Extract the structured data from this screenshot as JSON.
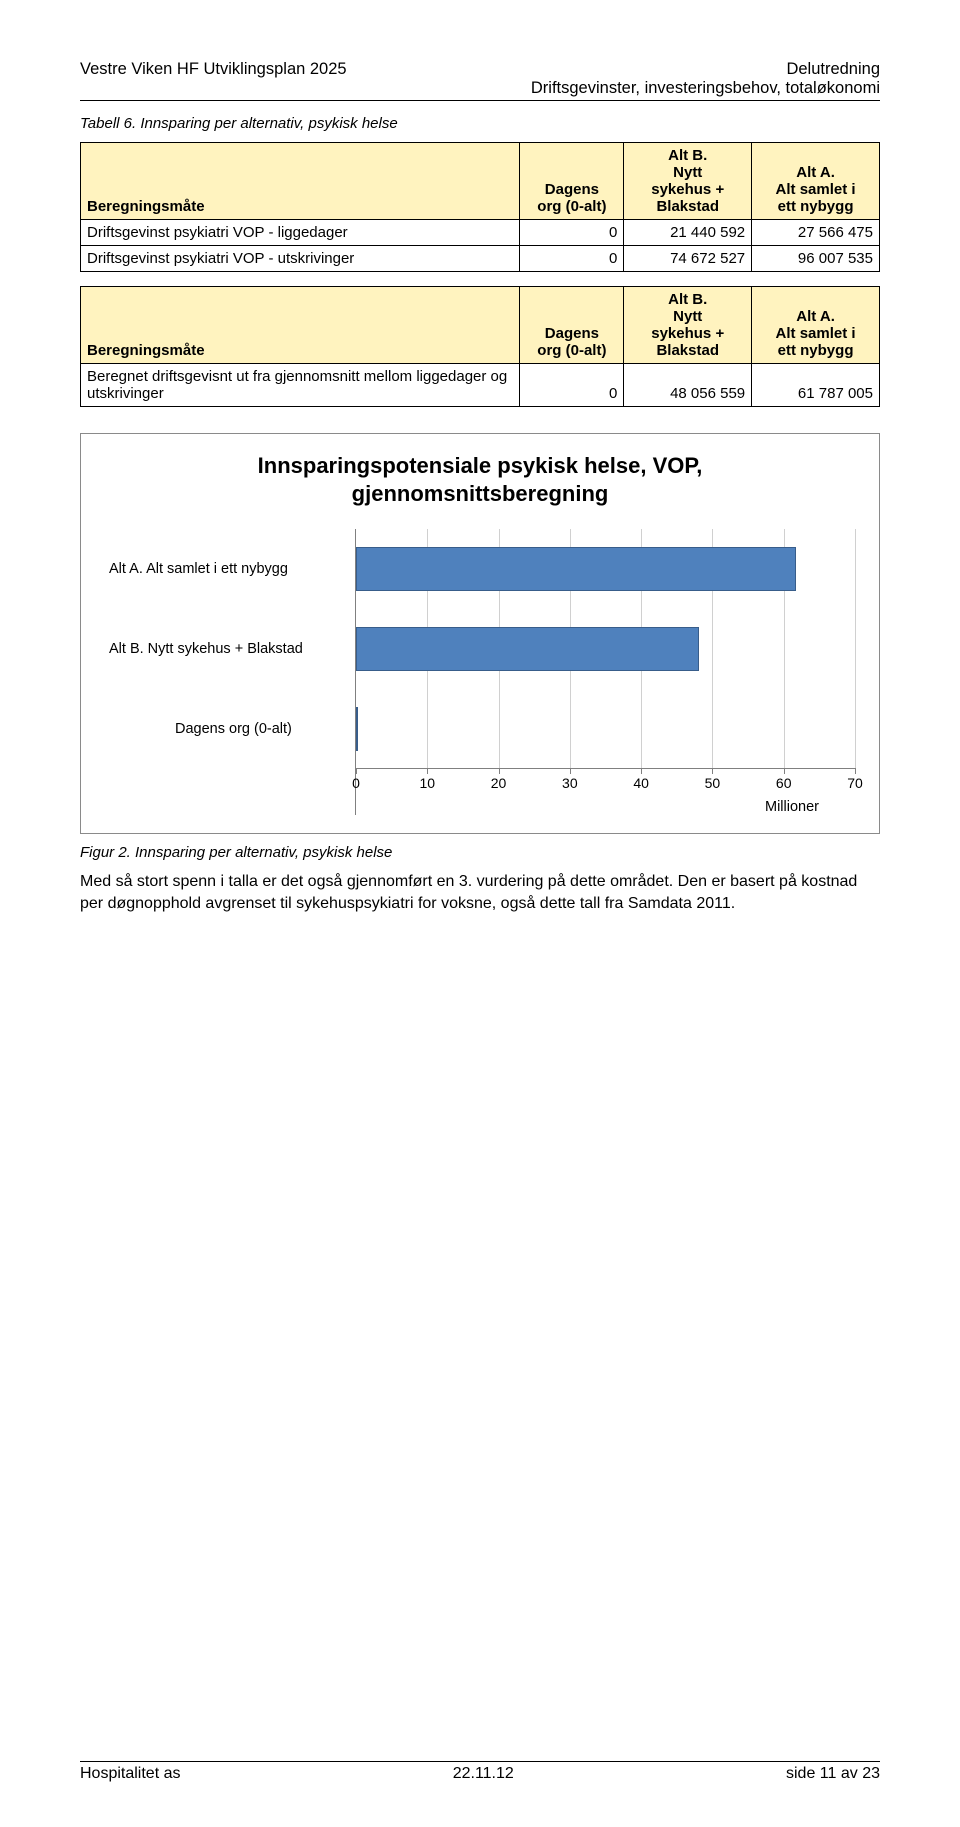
{
  "header": {
    "left": "Vestre Viken HF Utviklingsplan 2025",
    "right1": "Delutredning",
    "right2": "Driftsgevinster, investeringsbehov, totaløkonomi"
  },
  "table_caption": "Tabell 6. Innsparing per alternativ, psykisk helse",
  "table1": {
    "col0": "Beregningsmåte",
    "col1_l1": "Dagens",
    "col1_l2": "org (0-alt)",
    "col2_l1": "Alt B.",
    "col2_l2": "Nytt",
    "col2_l3": "sykehus +",
    "col2_l4": "Blakstad",
    "col3_l1": "Alt A.",
    "col3_l2": "Alt samlet i",
    "col3_l3": "ett nybygg",
    "r1_label": "Driftsgevinst psykiatri VOP - liggedager",
    "r1_c1": "0",
    "r1_c2": "21 440 592",
    "r1_c3": "27 566 475",
    "r2_label": "Driftsgevinst psykiatri VOP - utskrivinger",
    "r2_c1": "0",
    "r2_c2": "74 672 527",
    "r2_c3": "96 007 535"
  },
  "table2": {
    "col0": "Beregningsmåte",
    "col1_l1": "Dagens",
    "col1_l2": "org (0-alt)",
    "col2_l1": "Alt B.",
    "col2_l2": "Nytt",
    "col2_l3": "sykehus +",
    "col2_l4": "Blakstad",
    "col3_l1": "Alt A.",
    "col3_l2": "Alt samlet i",
    "col3_l3": "ett nybygg",
    "r1_label": "Beregnet driftsgevisnt ut fra gjennomsnitt mellom liggedager og utskrivinger",
    "r1_c1": "0",
    "r1_c2": "48 056 559",
    "r1_c3": "61 787 005"
  },
  "chart": {
    "type": "bar-horizontal",
    "title_l1": "Innsparingspotensiale psykisk helse, VOP,",
    "title_l2": "gjennomsnittsberegning",
    "categories": [
      "Alt A.    Alt samlet i ett nybygg",
      "Alt B.    Nytt sykehus + Blakstad",
      "Dagens org (0-alt)"
    ],
    "values": [
      61.787,
      48.057,
      0
    ],
    "xmin": 0,
    "xmax": 70,
    "xtick_step": 10,
    "xticks": [
      "0",
      "10",
      "20",
      "30",
      "40",
      "50",
      "60",
      "70"
    ],
    "xaxis_label": "Millioner",
    "bar_color": "#4f81bd",
    "bar_border": "#385d8a",
    "grid_color": "#d0d0d0",
    "axis_color": "#808080"
  },
  "fig_caption": "Figur 2. Innsparing per alternativ, psykisk helse",
  "body_text": "Med så stort spenn i talla er det også gjennomført en 3. vurdering på dette området. Den er basert på kostnad per døgnopphold avgrenset til sykehuspsykiatri for voksne, også dette tall fra Samdata 2011.",
  "footer": {
    "left": "Hospitalitet as",
    "center": "22.11.12",
    "right": "side 11 av 23"
  }
}
